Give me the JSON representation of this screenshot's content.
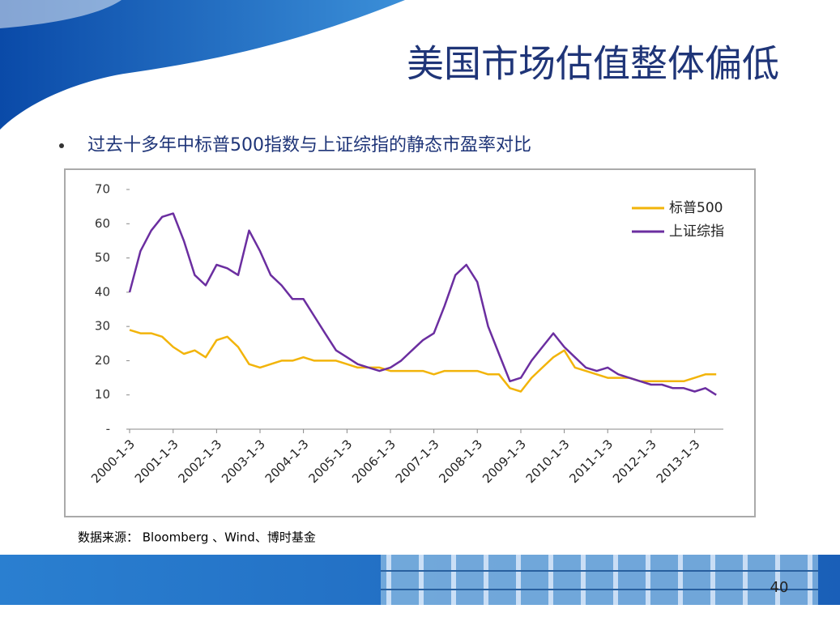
{
  "header": {
    "title": "美国市场估值整体偏低",
    "bullet": "过去十多年中标普500指数与上证综指的静态市盈率对比"
  },
  "chart_data": {
    "type": "line",
    "x": [
      "2000-1-3",
      "2000-4-3",
      "2000-7-3",
      "2000-10-3",
      "2001-1-3",
      "2001-4-3",
      "2001-7-3",
      "2001-10-3",
      "2002-1-3",
      "2002-4-3",
      "2002-7-3",
      "2002-10-3",
      "2003-1-3",
      "2003-4-3",
      "2003-7-3",
      "2003-10-3",
      "2004-1-3",
      "2004-4-3",
      "2004-7-3",
      "2004-10-3",
      "2005-1-3",
      "2005-4-3",
      "2005-7-3",
      "2005-10-3",
      "2006-1-3",
      "2006-4-3",
      "2006-7-3",
      "2006-10-3",
      "2007-1-3",
      "2007-4-3",
      "2007-7-3",
      "2007-10-3",
      "2008-1-3",
      "2008-4-3",
      "2008-7-3",
      "2008-10-3",
      "2009-1-3",
      "2009-4-3",
      "2009-7-3",
      "2009-10-3",
      "2010-1-3",
      "2010-4-3",
      "2010-7-3",
      "2010-10-3",
      "2011-1-3",
      "2011-4-3",
      "2011-7-3",
      "2011-10-3",
      "2012-1-3",
      "2012-4-3",
      "2012-7-3",
      "2012-10-3",
      "2013-1-3",
      "2013-4-3",
      "2013-7-3"
    ],
    "xlim": [
      "2000-1-3",
      "2013-9-1"
    ],
    "xticks": [
      "2000-1-3",
      "2001-1-3",
      "2002-1-3",
      "2003-1-3",
      "2004-1-3",
      "2005-1-3",
      "2006-1-3",
      "2007-1-3",
      "2008-1-3",
      "2009-1-3",
      "2010-1-3",
      "2011-1-3",
      "2012-1-3",
      "2013-1-3"
    ],
    "series": [
      {
        "name": "标普500",
        "color": "#f2b40a",
        "values": [
          29,
          28,
          28,
          27,
          24,
          22,
          23,
          21,
          26,
          27,
          24,
          19,
          18,
          19,
          20,
          20,
          21,
          20,
          20,
          20,
          19,
          18,
          18,
          18,
          17,
          17,
          17,
          17,
          16,
          17,
          17,
          17,
          17,
          16,
          16,
          12,
          11,
          15,
          18,
          21,
          23,
          18,
          17,
          16,
          15,
          15,
          15,
          14,
          14,
          14,
          14,
          14,
          15,
          16,
          16
        ]
      },
      {
        "name": "上证综指",
        "color": "#6b2ea0",
        "values": [
          40,
          52,
          58,
          62,
          63,
          55,
          45,
          42,
          48,
          47,
          45,
          58,
          52,
          45,
          42,
          38,
          38,
          33,
          28,
          23,
          21,
          19,
          18,
          17,
          18,
          20,
          23,
          26,
          28,
          36,
          45,
          48,
          43,
          30,
          22,
          14,
          15,
          20,
          24,
          28,
          24,
          21,
          18,
          17,
          18,
          16,
          15,
          14,
          13,
          13,
          12,
          12,
          11,
          12,
          10
        ]
      }
    ],
    "ylim": [
      0,
      70
    ],
    "yticks": [
      {
        "value": 0,
        "label": "-"
      },
      10,
      20,
      30,
      40,
      50,
      60,
      70
    ],
    "legend": "top-right",
    "note": "数据来源： Bloomberg 、Wind、博时基金"
  },
  "page_number": "40"
}
